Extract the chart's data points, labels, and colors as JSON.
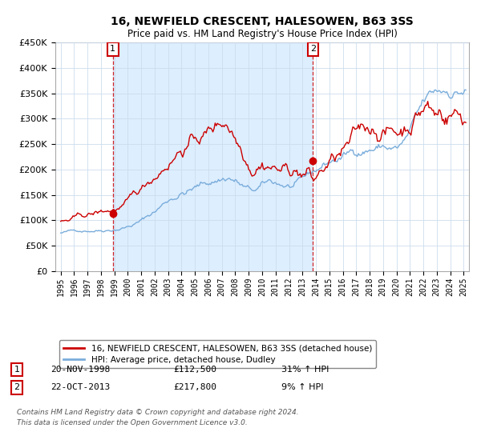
{
  "title": "16, NEWFIELD CRESCENT, HALESOWEN, B63 3SS",
  "subtitle": "Price paid vs. HM Land Registry's House Price Index (HPI)",
  "legend_line1": "16, NEWFIELD CRESCENT, HALESOWEN, B63 3SS (detached house)",
  "legend_line2": "HPI: Average price, detached house, Dudley",
  "sale1_date": "20-NOV-1998",
  "sale1_price": 112500,
  "sale1_label": "1",
  "sale1_pct": "31% ↑ HPI",
  "sale2_date": "22-OCT-2013",
  "sale2_price": 217800,
  "sale2_label": "2",
  "sale2_pct": "9% ↑ HPI",
  "footer_line1": "Contains HM Land Registry data © Crown copyright and database right 2024.",
  "footer_line2": "This data is licensed under the Open Government Licence v3.0.",
  "ylim": [
    0,
    450000
  ],
  "yticks": [
    0,
    50000,
    100000,
    150000,
    200000,
    250000,
    300000,
    350000,
    400000,
    450000
  ],
  "price_line_color": "#cc0000",
  "hpi_line_color": "#7aaddb",
  "shade_color": "#ddeeff",
  "background_color": "#ffffff",
  "grid_color": "#ccddee",
  "sale_marker_color": "#cc0000",
  "dashed_line_color": "#cc0000",
  "annotation_box_color": "#cc0000",
  "sale1_x": 1998.88,
  "sale2_x": 2013.79,
  "xmin": 1995.0,
  "xmax": 2025.2
}
